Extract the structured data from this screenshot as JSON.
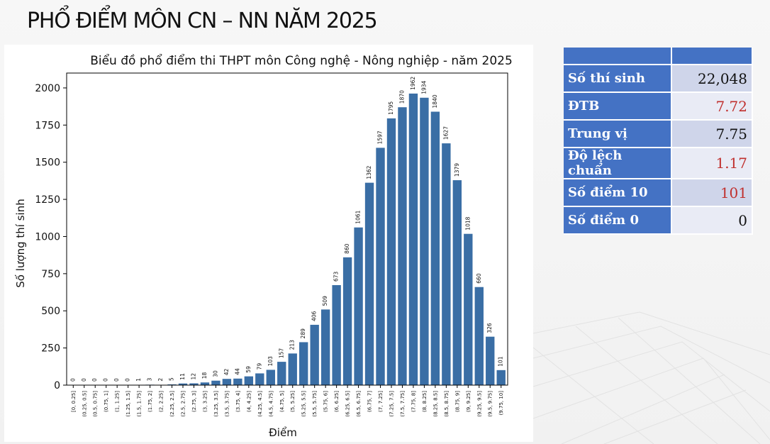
{
  "slide": {
    "title": "PHỔ ĐIỂM MÔN CN – NN NĂM 2025"
  },
  "stats": {
    "rows": [
      {
        "label": "Số thí sinh",
        "value": "22,048",
        "value_color": "#111111"
      },
      {
        "label": "ĐTB",
        "value": "7.72",
        "value_color": "#c0302e"
      },
      {
        "label": "Trung vị",
        "value": "7.75",
        "value_color": "#111111"
      },
      {
        "label": "Độ lệch chuẩn",
        "value": "1.17",
        "value_color": "#c0302e"
      },
      {
        "label": "Số điểm 10",
        "value": "101",
        "value_color": "#c0302e"
      },
      {
        "label": "Số điểm 0",
        "value": "0",
        "value_color": "#111111"
      }
    ],
    "header_color": "#4472c4"
  },
  "chart_data": {
    "type": "bar",
    "title": "Biểu đồ phổ điểm thi THPT môn Công nghệ - Nông nghiệp - năm 2025",
    "xlabel": "Điểm",
    "ylabel": "Số lượng thí sinh",
    "ylim": [
      0,
      2100
    ],
    "yticks": [
      0,
      250,
      500,
      750,
      1000,
      1250,
      1500,
      1750,
      2000
    ],
    "bar_color": "#3a6ea5",
    "grid": false,
    "categories": [
      "[0, 0.25]",
      "(0.25, 0.5]",
      "(0.5, 0.75]",
      "(0.75, 1]",
      "(1, 1.25]",
      "(1.25, 1.5]",
      "(1.5, 1.75]",
      "(1.75, 2]",
      "(2, 2.25]",
      "(2.25, 2.5]",
      "(2.5, 2.75]",
      "(2.75, 3]",
      "(3, 3.25]",
      "(3.25, 3.5]",
      "(3.5, 3.75]",
      "(3.75, 4]",
      "(4, 4.25]",
      "(4.25, 4.5]",
      "(4.5, 4.75]",
      "(4.75, 5]",
      "(5, 5.25]",
      "(5.25, 5.5]",
      "(5.5, 5.75]",
      "(5.75, 6]",
      "(6, 6.25]",
      "(6.25, 6.5]",
      "(6.5, 6.75]",
      "(6.75, 7]",
      "(7, 7.25]",
      "(7.25, 7.5]",
      "(7.5, 7.75]",
      "(7.75, 8]",
      "(8, 8.25]",
      "(8.25, 8.5]",
      "(8.5, 8.75]",
      "(8.75, 9]",
      "(9, 9.25]",
      "(9.25, 9.5]",
      "(9.5, 9.75]",
      "(9.75, 10]"
    ],
    "values": [
      0,
      0,
      0,
      0,
      0,
      0,
      1,
      3,
      2,
      5,
      11,
      12,
      18,
      30,
      42,
      44,
      59,
      79,
      103,
      157,
      213,
      289,
      406,
      509,
      673,
      860,
      1061,
      1362,
      1597,
      1795,
      1870,
      1962,
      1934,
      1840,
      1627,
      1379,
      1018,
      660,
      326,
      101
    ]
  }
}
